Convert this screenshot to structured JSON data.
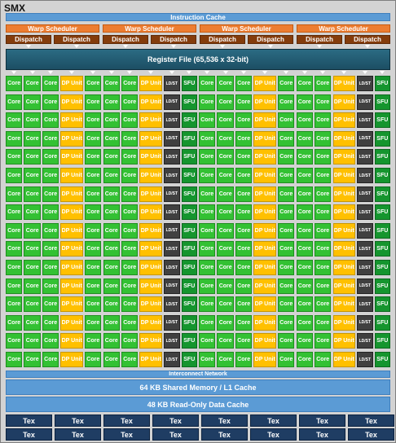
{
  "smx_label": "SMX",
  "instruction_cache": "Instruction Cache",
  "warp_scheduler": "Warp Scheduler",
  "dispatch": "Dispatch",
  "register_file": "Register File (65,536 x 32-bit)",
  "unit_labels": {
    "core": "Core",
    "dp": "DP Unit",
    "ldst": "LD/ST",
    "sfu": "SFU"
  },
  "interconnect": "Interconnect Network",
  "shared_memory": "64 KB Shared Memory / L1 Cache",
  "readonly_cache": "48 KB Read-Only Data Cache",
  "tex": "Tex",
  "colors": {
    "core": "#33c133",
    "dp_unit": "#ffc000",
    "ldst": "#404040",
    "sfu": "#15952e",
    "warp_scheduler": "#ed7d31",
    "dispatch": "#843c0c",
    "cache": "#5b9bd5",
    "register_file": "#1c4e63",
    "tex": "#1f3d63"
  }
}
